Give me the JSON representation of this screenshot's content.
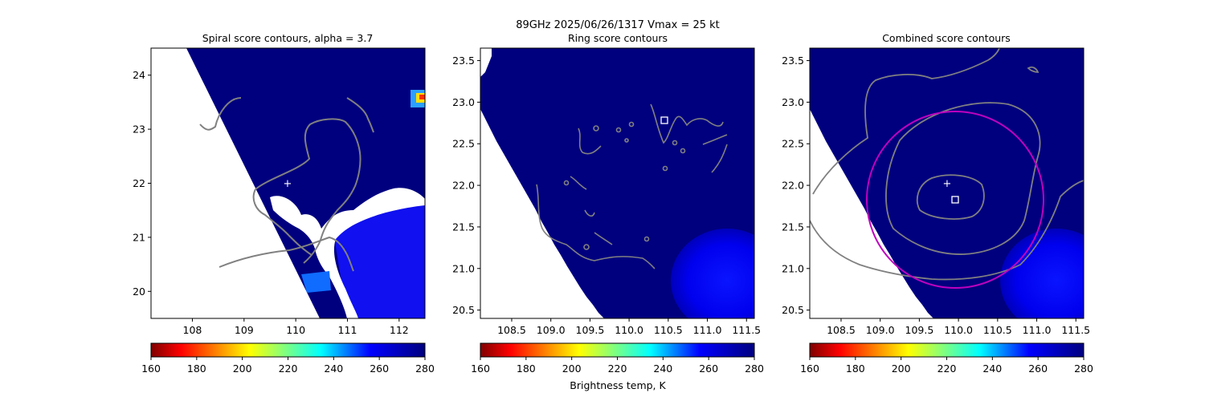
{
  "figure": {
    "suptitle_line1": "89GHz  2025/06/26/1317    Vmax = 25 kt",
    "colorbar_label": "Brightness temp, K"
  },
  "colors": {
    "background_field": "#00007f",
    "warm_field": "#1a1aff",
    "contour": "#808080",
    "circle": "#bf00bf"
  },
  "chart_data": [
    {
      "type": "heatmap",
      "title": "Spiral score contours, alpha =  3.7",
      "xlim": [
        107.2,
        112.5
      ],
      "ylim": [
        19.5,
        24.5
      ],
      "xticks": [
        108,
        109,
        110,
        111,
        112
      ],
      "yticks": [
        20,
        21,
        22,
        23,
        24
      ],
      "xtick_labels": [
        "108",
        "109",
        "110",
        "111",
        "112"
      ],
      "ytick_labels": [
        "20",
        "21",
        "22",
        "23",
        "24"
      ],
      "center_marker": {
        "x": 109.8,
        "y": 22.0,
        "symbol": "+"
      },
      "colorbar": {
        "min": 160,
        "max": 280,
        "ticks": [
          "160",
          "180",
          "200",
          "220",
          "240",
          "260",
          "280"
        ]
      }
    },
    {
      "type": "heatmap",
      "title": "Ring score contours",
      "xlim": [
        108.1,
        111.6
      ],
      "ylim": [
        20.4,
        23.65
      ],
      "xticks": [
        108.5,
        109.0,
        109.5,
        110.0,
        110.5,
        111.0,
        111.5
      ],
      "yticks": [
        20.5,
        21.0,
        21.5,
        22.0,
        22.5,
        23.0,
        23.5
      ],
      "xtick_labels": [
        "108.5",
        "109.0",
        "109.5",
        "110.0",
        "110.5",
        "111.0",
        "111.5"
      ],
      "ytick_labels": [
        "20.5",
        "21.0",
        "21.5",
        "22.0",
        "22.5",
        "23.0",
        "23.5"
      ],
      "square_marker": {
        "x": 110.4,
        "y": 22.75,
        "symbol": "square"
      },
      "colorbar": {
        "min": 160,
        "max": 280,
        "ticks": [
          "160",
          "180",
          "200",
          "220",
          "240",
          "260",
          "280"
        ]
      }
    },
    {
      "type": "heatmap",
      "title": "Combined score contours",
      "xlim": [
        108.1,
        111.6
      ],
      "ylim": [
        20.4,
        23.65
      ],
      "xticks": [
        108.5,
        109.0,
        109.5,
        110.0,
        110.5,
        111.0,
        111.5
      ],
      "yticks": [
        20.5,
        21.0,
        21.5,
        22.0,
        22.5,
        23.0,
        23.5
      ],
      "xtick_labels": [
        "108.5",
        "109.0",
        "109.5",
        "110.0",
        "110.5",
        "111.0",
        "111.5"
      ],
      "ytick_labels": [
        "20.5",
        "21.0",
        "21.5",
        "22.0",
        "22.5",
        "23.0",
        "23.5"
      ],
      "center_marker": {
        "x": 109.8,
        "y": 22.0,
        "symbol": "+"
      },
      "square_marker": {
        "x": 109.9,
        "y": 21.8,
        "symbol": "square"
      },
      "circle": {
        "center_x": 109.9,
        "center_y": 21.8,
        "radius_deg": 1.05
      },
      "colorbar": {
        "min": 160,
        "max": 280,
        "ticks": [
          "160",
          "180",
          "200",
          "220",
          "240",
          "260",
          "280"
        ]
      }
    }
  ]
}
